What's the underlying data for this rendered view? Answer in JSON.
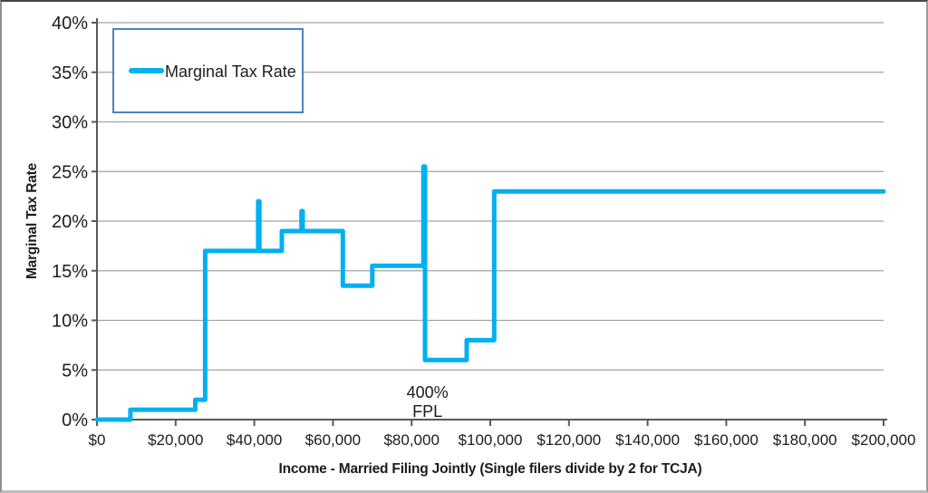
{
  "chart_data": {
    "type": "line",
    "subtype": "step",
    "title": "",
    "xlabel": "Income - Married Filing Jointly (Single filers divide by 2 for TCJA)",
    "ylabel": "Marginal Tax Rate",
    "xlim": [
      0,
      200000
    ],
    "ylim": [
      0,
      40
    ],
    "grid": "horizontal",
    "grid_color": "#a3a3a3",
    "axis_color": "#595959",
    "x_tick_values": [
      0,
      20000,
      40000,
      60000,
      80000,
      100000,
      120000,
      140000,
      160000,
      180000,
      200000
    ],
    "x_ticks": [
      "$0",
      "$20,000",
      "$40,000",
      "$60,000",
      "$80,000",
      "$100,000",
      "$120,000",
      "$140,000",
      "$160,000",
      "$180,000",
      "$200,000"
    ],
    "y_tick_values": [
      0,
      5,
      10,
      15,
      20,
      25,
      30,
      35,
      40
    ],
    "y_ticks": [
      "0%",
      "5%",
      "10%",
      "15%",
      "20%",
      "25%",
      "30%",
      "35%",
      "40%"
    ],
    "series": [
      {
        "name": "Marginal Tax Rate",
        "color": "#00B0F0",
        "stroke_width": 5,
        "points": [
          [
            0,
            0
          ],
          [
            8500,
            0
          ],
          [
            8500,
            1
          ],
          [
            25000,
            1
          ],
          [
            25000,
            2
          ],
          [
            27500,
            2
          ],
          [
            27500,
            17
          ],
          [
            41000,
            17
          ],
          [
            41000,
            22
          ],
          [
            41300,
            22
          ],
          [
            41300,
            17
          ],
          [
            47000,
            17
          ],
          [
            47000,
            19
          ],
          [
            52000,
            19
          ],
          [
            52000,
            21
          ],
          [
            52300,
            21
          ],
          [
            52300,
            19
          ],
          [
            62500,
            19
          ],
          [
            62500,
            13.5
          ],
          [
            70000,
            13.5
          ],
          [
            70000,
            15.5
          ],
          [
            83000,
            15.5
          ],
          [
            83000,
            25.5
          ],
          [
            83400,
            25.5
          ],
          [
            83400,
            6
          ],
          [
            94000,
            6
          ],
          [
            94000,
            8
          ],
          [
            101000,
            8
          ],
          [
            101000,
            23
          ],
          [
            200000,
            23
          ]
        ]
      }
    ],
    "legend": {
      "label": "Marginal Tax Rate",
      "position": "top-left",
      "border_color": "#4F81BD"
    },
    "annotation": {
      "line1": "400%",
      "line2": "FPL",
      "x_value": 84000
    }
  }
}
